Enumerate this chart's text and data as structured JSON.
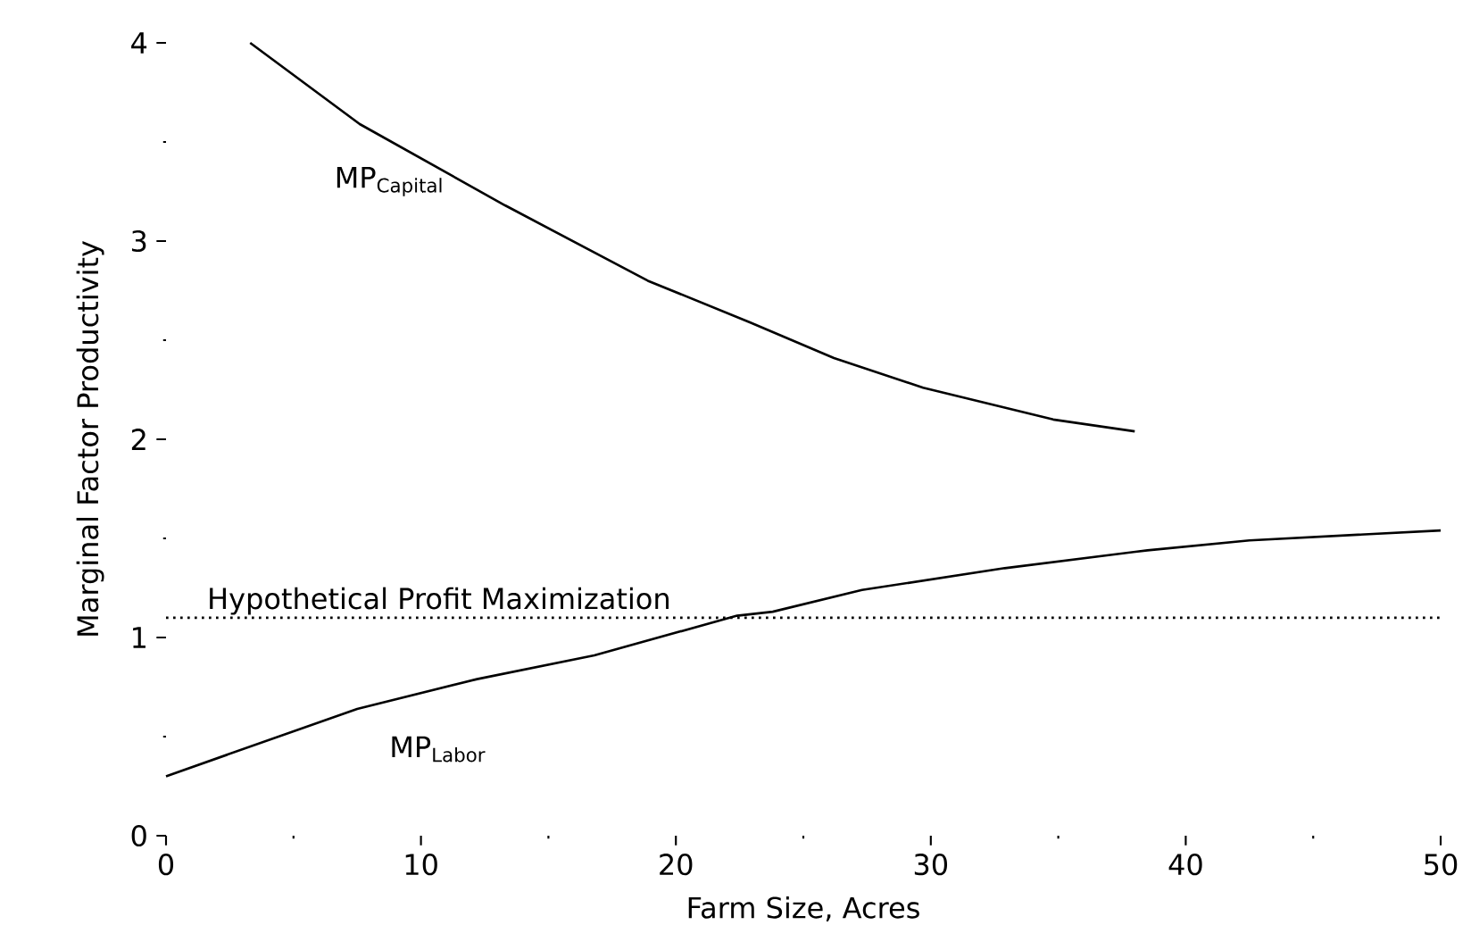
{
  "chart_data": {
    "type": "line",
    "xlabel": "Farm Size, Acres",
    "ylabel": "Marginal Factor Productivity",
    "xlim": [
      0,
      50
    ],
    "ylim": [
      0,
      4
    ],
    "xticks": [
      0,
      {
        "value": 5,
        "label": null
      },
      10,
      {
        "value": 15,
        "label": null
      },
      20,
      {
        "value": 25,
        "label": null
      },
      30,
      {
        "value": 35,
        "label": null
      },
      40,
      {
        "value": 45,
        "label": null
      },
      50
    ],
    "yticks": [
      0,
      {
        "value": 0.5,
        "label": null
      },
      1,
      {
        "value": 1.5,
        "label": null
      },
      2,
      {
        "value": 2.5,
        "label": null
      },
      3,
      {
        "value": 3.5,
        "label": null
      },
      4
    ],
    "grid": false,
    "legend": false,
    "marker": "none",
    "line_style": "solid",
    "series": [
      {
        "name": "MP$_{Capital}$",
        "color": "#000000",
        "x": [
          3.3,
          7.6,
          13.3,
          18.9,
          22.9,
          26.2,
          29.7,
          34.8,
          38.0
        ],
        "values": [
          4.0,
          3.59,
          3.18,
          2.8,
          2.59,
          2.41,
          2.26,
          2.1,
          2.04
        ]
      },
      {
        "name": "MP$_{Labor}$",
        "color": "#000000",
        "x": [
          0,
          7.5,
          12.2,
          16.8,
          22.4,
          23.8,
          27.3,
          32.9,
          38.5,
          42.5,
          50
        ],
        "values": [
          0.3,
          0.64,
          0.79,
          0.91,
          1.11,
          1.13,
          1.24,
          1.35,
          1.44,
          1.49,
          1.54
        ]
      }
    ],
    "ref_lines": [
      {
        "axis": "y",
        "value": 1.1,
        "label": "Hypothetical Profit Maximization",
        "color": "#000000",
        "line_style": "dotted"
      }
    ]
  }
}
